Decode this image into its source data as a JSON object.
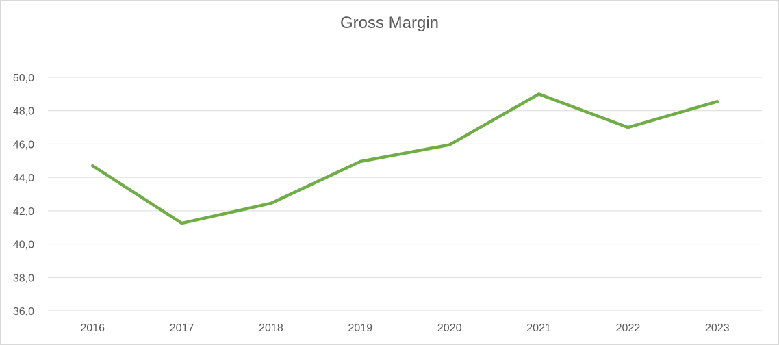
{
  "chart_data": {
    "type": "line",
    "title": "Gross Margin",
    "xlabel": "",
    "ylabel": "",
    "categories": [
      "2016",
      "2017",
      "2018",
      "2019",
      "2020",
      "2021",
      "2022",
      "2023"
    ],
    "series": [
      {
        "values": [
          44.7,
          41.25,
          42.45,
          44.95,
          45.95,
          49.0,
          47.0,
          48.55
        ],
        "color": "#70ad47"
      }
    ],
    "ylim": [
      36,
      50
    ],
    "y_ticks": [
      "36,0",
      "38,0",
      "40,0",
      "42,0",
      "44,0",
      "46,0",
      "48,0",
      "50,0"
    ],
    "grid": true,
    "legend": "none"
  }
}
